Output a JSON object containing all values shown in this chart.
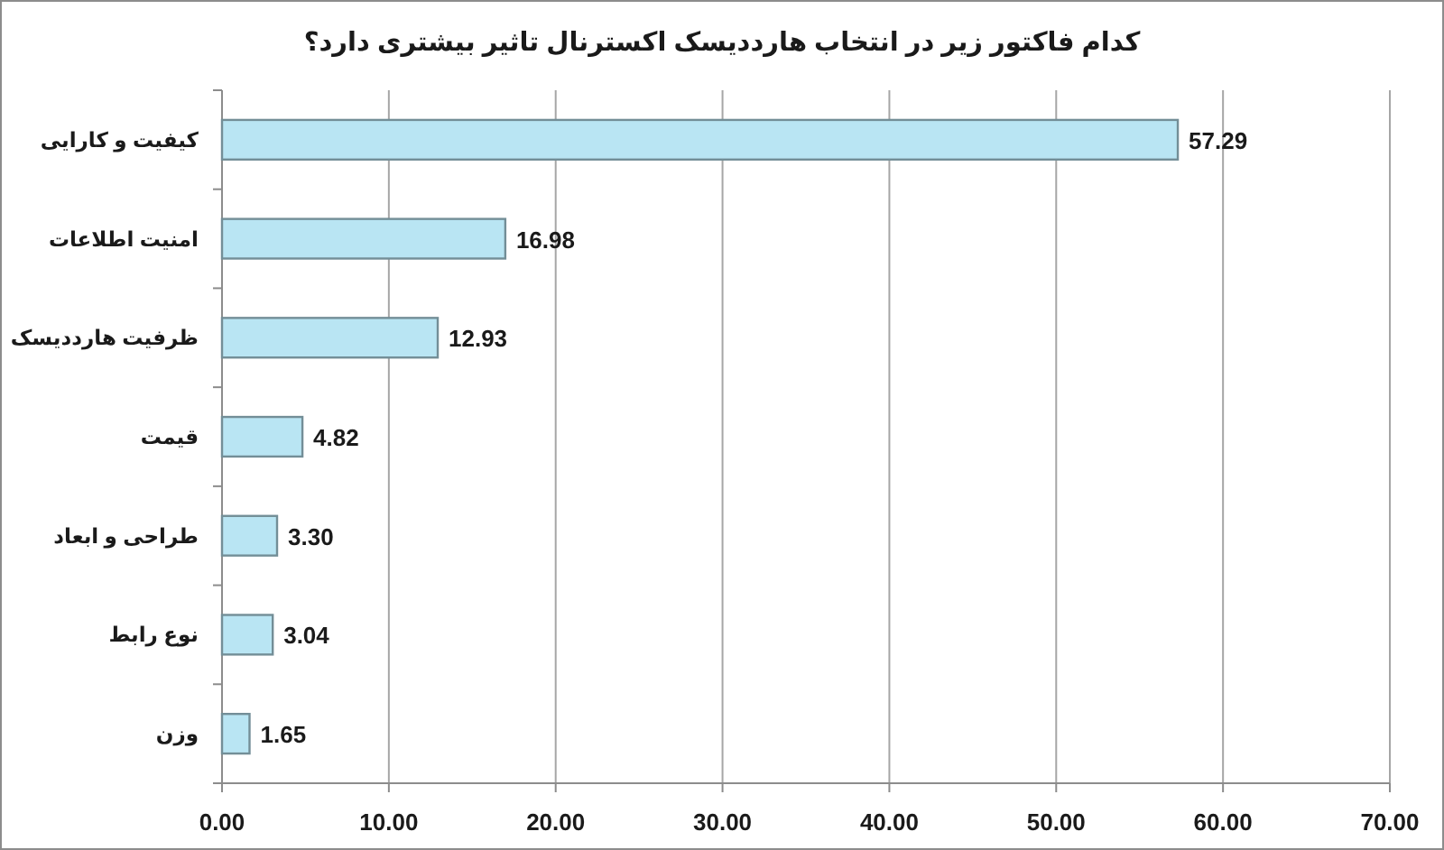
{
  "chart_data": {
    "type": "bar",
    "orientation": "horizontal",
    "title": "کدام فاکتور زیر در انتخاب هارددیسک اکسترنال تاثیر بیشتری دارد؟",
    "categories": [
      "کیفیت و کارایی",
      "امنیت اطلاعات",
      "ظرفیت هارددیسک",
      "قیمت",
      "طراحی و ابعاد",
      "نوع رابط",
      "وزن"
    ],
    "values": [
      57.29,
      16.98,
      12.93,
      4.82,
      3.3,
      3.04,
      1.65
    ],
    "value_labels": [
      "57.29",
      "16.98",
      "12.93",
      "4.82",
      "3.30",
      "3.04",
      "1.65"
    ],
    "color": "#b9e5f3",
    "xlim": [
      0,
      70
    ],
    "xticks": [
      {
        "value": 0,
        "label": "0.00"
      },
      {
        "value": 10,
        "label": "10.00"
      },
      {
        "value": 20,
        "label": "20.00"
      },
      {
        "value": 30,
        "label": "30.00"
      },
      {
        "value": 40,
        "label": "40.00"
      },
      {
        "value": 50,
        "label": "50.00"
      },
      {
        "value": 60,
        "label": "60.00"
      },
      {
        "value": 70,
        "label": "70.00"
      }
    ],
    "grid": "x"
  }
}
